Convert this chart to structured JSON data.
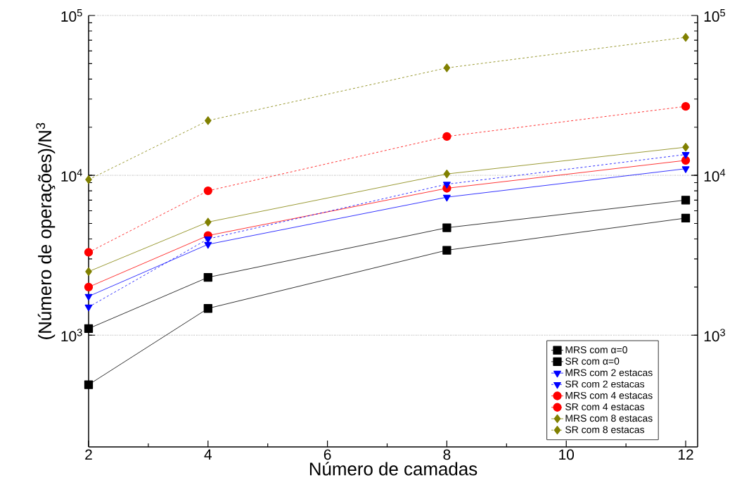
{
  "chart_data": {
    "type": "line",
    "xlabel": "Número de camadas",
    "ylabel": "(Número de operações)/N$^{3}$",
    "x": [
      2,
      4,
      8,
      12
    ],
    "series": [
      {
        "name": "MRS com α=0",
        "color": "#000000",
        "marker": "square",
        "line_style": "solid",
        "values": [
          1100,
          2300,
          4700,
          7000
        ]
      },
      {
        "name": "SR com α=0",
        "color": "#000000",
        "marker": "square",
        "line_style": "solid",
        "values": [
          490,
          1470,
          3400,
          5400
        ]
      },
      {
        "name": "MRS com 2 estacas",
        "color": "#0000ff",
        "marker": "triangle",
        "line_style": "solid",
        "values": [
          1750,
          3700,
          7300,
          11000
        ]
      },
      {
        "name": "SR com 2 estacas",
        "color": "#0000ff",
        "marker": "triangle",
        "line_style": "dashed",
        "values": [
          1500,
          4000,
          8800,
          13500
        ]
      },
      {
        "name": "MRS com 4 estacas",
        "color": "#ff0000",
        "marker": "circle",
        "line_style": "solid",
        "values": [
          2000,
          4200,
          8300,
          12400
        ]
      },
      {
        "name": "SR com 4 estacas",
        "color": "#ff0000",
        "marker": "circle",
        "line_style": "dashed",
        "values": [
          3300,
          8000,
          17500,
          27000
        ]
      },
      {
        "name": "MRS com 8 estacas",
        "color": "#808000",
        "marker": "diamond",
        "line_style": "solid",
        "values": [
          2500,
          5100,
          10200,
          15000
        ]
      },
      {
        "name": "SR com 8 estacas",
        "color": "#808000",
        "marker": "diamond",
        "line_style": "dashed",
        "values": [
          9400,
          22000,
          47000,
          73000
        ]
      }
    ],
    "xlim": [
      2,
      12.2
    ],
    "xticks": [
      2,
      4,
      6,
      8,
      10,
      12
    ],
    "ylim": [
      200,
      100000
    ],
    "yticks": [
      {
        "value": 1000,
        "label": "10$^{3}$"
      },
      {
        "value": 10000,
        "label": "10$^{4}$"
      },
      {
        "value": 100000,
        "label": "10$^{5}$"
      }
    ],
    "log": "y",
    "grid": "y",
    "legend": "bottom right"
  }
}
